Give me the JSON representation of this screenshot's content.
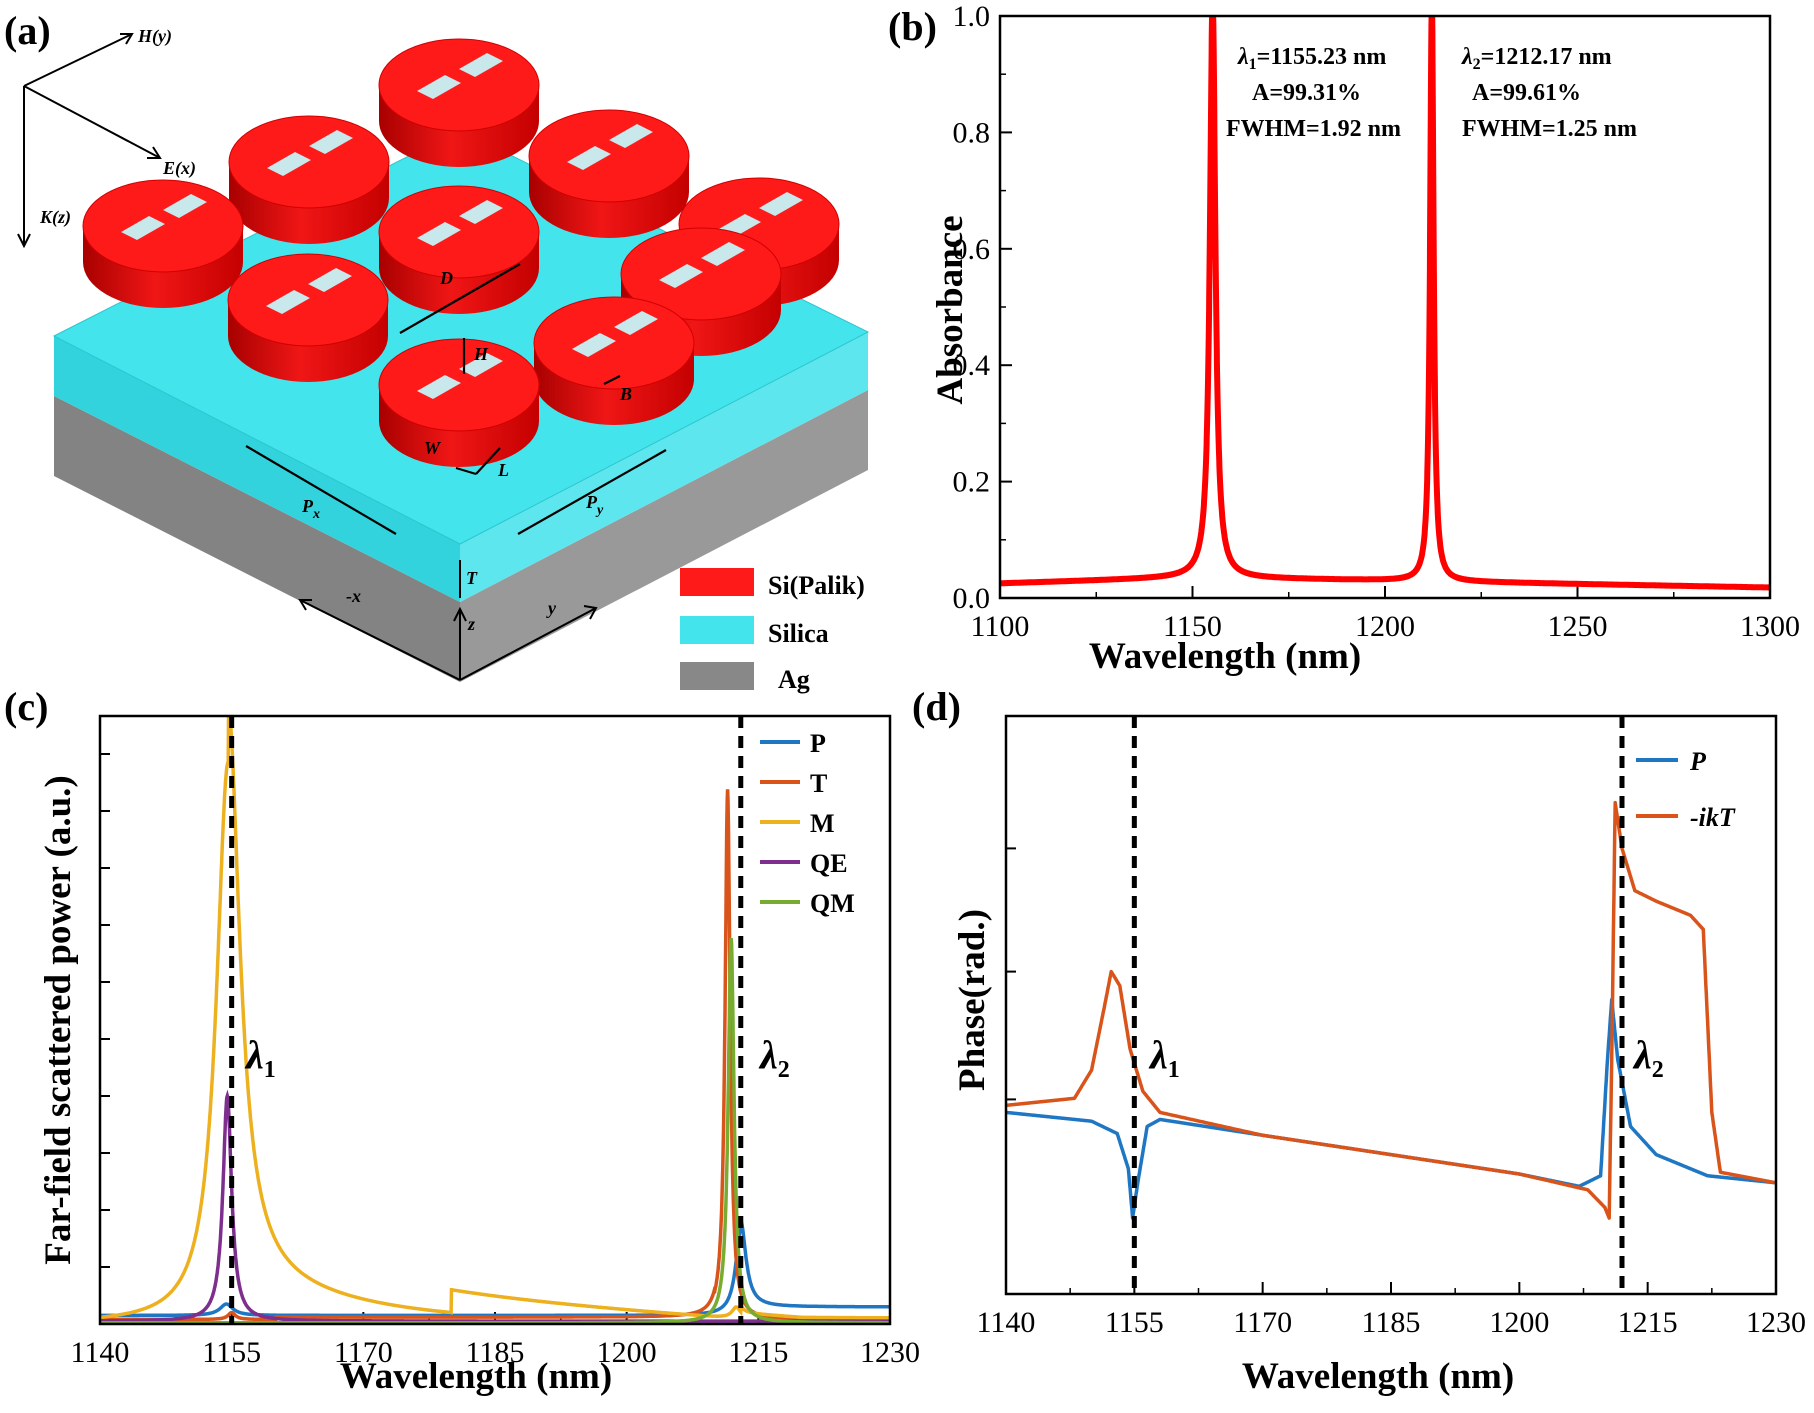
{
  "panels": {
    "a": {
      "label": "(a)",
      "axes": {
        "h": "H(y)",
        "e": "E(x)",
        "k": "K(z)"
      },
      "dims": {
        "d": "D",
        "h": "H",
        "b": "B",
        "w": "W",
        "l": "L",
        "px": "P",
        "px_sub": "x",
        "py": "P",
        "py_sub": "y",
        "t": "T"
      },
      "coords": {
        "x": "-x",
        "y": "y",
        "z": "z"
      },
      "legend": [
        {
          "name": "Si(Palik)",
          "color": "#ff1a1a"
        },
        {
          "name": "Silica",
          "color": "#44e4ec"
        },
        {
          "name": "Ag",
          "color": "#888888"
        }
      ]
    },
    "b": {
      "label": "(b)"
    },
    "c": {
      "label": "(c)"
    },
    "d": {
      "label": "(d)"
    }
  },
  "chart_data": [
    {
      "panel": "b",
      "type": "line",
      "xlabel": "Wavelength (nm)",
      "ylabel": "Absorbance",
      "xlim": [
        1100,
        1300
      ],
      "ylim": [
        0,
        1
      ],
      "xticks": [
        1100,
        1150,
        1200,
        1250,
        1300
      ],
      "yticks": [
        "0.0",
        "0.2",
        "0.4",
        "0.6",
        "0.8",
        "1.0"
      ],
      "color": "#ff0000",
      "peaks": [
        {
          "center": 1155.23,
          "amplitude": 0.9931,
          "fwhm": 1.92
        },
        {
          "center": 1212.17,
          "amplitude": 0.9961,
          "fwhm": 1.25
        }
      ],
      "baseline": [
        [
          1100,
          0.025
        ],
        [
          1150,
          0.035
        ],
        [
          1200,
          0.03
        ],
        [
          1300,
          0.018
        ]
      ],
      "annotations": [
        {
          "sym": "λ",
          "sub": "1",
          "value": "=1155.23 nm",
          "line2": "A=99.31%",
          "line3": "FWHM=1.92 nm"
        },
        {
          "sym": "λ",
          "sub": "2",
          "value": "=1212.17 nm",
          "line2": "A=99.61%",
          "line3": "FWHM=1.25 nm"
        }
      ]
    },
    {
      "panel": "c",
      "type": "line",
      "xlabel": "Wavelength (nm)",
      "ylabel": "Far-field scattered power (a.u.)",
      "xlim": [
        1140,
        1230
      ],
      "ylim": [
        0,
        1
      ],
      "xticks": [
        1140,
        1155,
        1170,
        1185,
        1200,
        1215,
        1230
      ],
      "vlines": [
        1155,
        1213
      ],
      "vline_labels": [
        {
          "sym": "λ",
          "sub": "1"
        },
        {
          "sym": "λ",
          "sub": "2"
        }
      ],
      "series": [
        {
          "name": "P",
          "color": "#1f77c4",
          "base": 0.015,
          "peaks": [
            [
              1154.4,
              0.02,
              0.9
            ],
            [
              1213,
              0.15,
              0.7
            ]
          ]
        },
        {
          "name": "T",
          "color": "#d9541a",
          "base": 0.008,
          "peaks": [
            [
              1155,
              0.012,
              0.5
            ],
            [
              1211.5,
              0.93,
              0.35
            ]
          ]
        },
        {
          "name": "M",
          "color": "#edb120",
          "base": 0.0,
          "peaks": [
            [
              1154.6,
              0.985,
              1.6
            ],
            [
              1212.5,
              0.02,
              0.6
            ]
          ]
        },
        {
          "name": "QE",
          "color": "#7e2f8e",
          "base": 0.005,
          "peaks": [
            [
              1154.5,
              0.395,
              0.6
            ]
          ]
        },
        {
          "name": "QM",
          "color": "#77ac30",
          "base": 0.002,
          "peaks": [
            [
              1211.9,
              0.675,
              0.4
            ]
          ]
        }
      ]
    },
    {
      "panel": "d",
      "type": "line",
      "xlabel": "Wavelength (nm)",
      "ylabel": "Phase(rad.)",
      "xlim": [
        1140,
        1230
      ],
      "xticks": [
        1140,
        1155,
        1170,
        1185,
        1200,
        1215,
        1230
      ],
      "vlines": [
        1155,
        1212
      ],
      "vline_labels": [
        {
          "sym": "λ",
          "sub": "1"
        },
        {
          "sym": "λ",
          "sub": "2"
        }
      ],
      "series": [
        {
          "name": "P",
          "color": "#1f77c4",
          "points": [
            [
              1140,
              0.3
            ],
            [
              1150,
              0.275
            ],
            [
              1153,
              0.24
            ],
            [
              1154.3,
              0.14
            ],
            [
              1154.8,
              0.0
            ],
            [
              1155.4,
              0.1
            ],
            [
              1156.5,
              0.26
            ],
            [
              1158,
              0.28
            ],
            [
              1170,
              0.235
            ],
            [
              1185,
              0.18
            ],
            [
              1200,
              0.125
            ],
            [
              1207,
              0.09
            ],
            [
              1209.5,
              0.12
            ],
            [
              1210.3,
              0.45
            ],
            [
              1210.8,
              0.62
            ],
            [
              1211.5,
              0.45
            ],
            [
              1213,
              0.26
            ],
            [
              1216,
              0.18
            ],
            [
              1222,
              0.12
            ],
            [
              1230,
              0.1
            ]
          ]
        },
        {
          "name": "-ikT",
          "color": "#d9541a",
          "points": [
            [
              1140,
              0.32
            ],
            [
              1148,
              0.34
            ],
            [
              1150,
              0.42
            ],
            [
              1151.5,
              0.6
            ],
            [
              1152.3,
              0.7
            ],
            [
              1153.3,
              0.66
            ],
            [
              1154.5,
              0.48
            ],
            [
              1156,
              0.36
            ],
            [
              1158,
              0.3
            ],
            [
              1170,
              0.235
            ],
            [
              1185,
              0.18
            ],
            [
              1200,
              0.125
            ],
            [
              1208,
              0.08
            ],
            [
              1210,
              0.03
            ],
            [
              1210.5,
              0.0
            ],
            [
              1210.8,
              0.45
            ],
            [
              1211.2,
              1.18
            ],
            [
              1212,
              1.05
            ],
            [
              1213.5,
              0.93
            ],
            [
              1216,
              0.9
            ],
            [
              1220,
              0.86
            ],
            [
              1221.5,
              0.82
            ],
            [
              1222.5,
              0.3
            ],
            [
              1223.5,
              0.13
            ],
            [
              1230,
              0.1
            ]
          ]
        }
      ]
    }
  ]
}
